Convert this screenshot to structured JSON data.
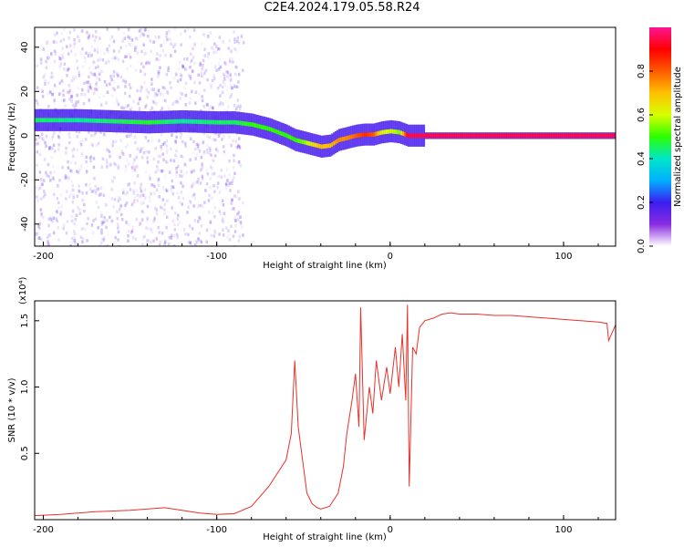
{
  "page": {
    "title": "C2E4.2024.179.05.58.R24"
  },
  "colors": {
    "snr_line": "#e8312a",
    "colormap": [
      "#ffffff",
      "#8a2be2",
      "#3b1ef0",
      "#00b0ff",
      "#00e6c8",
      "#2cff00",
      "#d7ff00",
      "#ffc000",
      "#ff5a00",
      "#ff0000",
      "#ff1493"
    ]
  },
  "chart_data": [
    {
      "type": "heatmap",
      "title": "C2E4.2024.179.05.58.R24",
      "xlabel": "Height of straight line (km)",
      "ylabel": "Frequency (Hz)",
      "xlim": [
        -205,
        130
      ],
      "ylim": [
        -50,
        49
      ],
      "x_ticks": [
        -200,
        -100,
        0,
        100
      ],
      "y_ticks": [
        -40,
        -20,
        0,
        20,
        40
      ],
      "grid": false,
      "colorbar": {
        "label": "Normalized spectral amplitude",
        "range": [
          0,
          1
        ],
        "ticks": [
          "0.0",
          "0.2",
          "0.4",
          "0.6",
          "0.8"
        ]
      },
      "ridge": {
        "x": [
          -205,
          -180,
          -160,
          -140,
          -120,
          -100,
          -90,
          -80,
          -70,
          -60,
          -55,
          -50,
          -45,
          -40,
          -35,
          -30,
          -25,
          -20,
          -15,
          -10,
          -5,
          0,
          5,
          10,
          20,
          130
        ],
        "freq": [
          7,
          7,
          6.5,
          6,
          6.5,
          6,
          6,
          5,
          3,
          0,
          -2,
          -3,
          -4,
          -5,
          -4.5,
          -2,
          -1,
          0,
          0.5,
          0.5,
          1.5,
          2,
          1.5,
          0,
          0,
          0
        ],
        "amplitude": [
          0.45,
          0.42,
          0.45,
          0.48,
          0.42,
          0.45,
          0.45,
          0.5,
          0.5,
          0.5,
          0.5,
          0.55,
          0.65,
          0.7,
          0.7,
          0.75,
          0.75,
          0.8,
          0.85,
          0.8,
          0.6,
          0.6,
          0.55,
          0.95,
          0.95,
          0.95
        ]
      }
    },
    {
      "type": "line",
      "xlabel": "Height of straight line (km)",
      "ylabel": "SNR (10 * v/v)",
      "y_multiplier": "(x10⁴)",
      "xlim": [
        -205,
        130
      ],
      "ylim": [
        0,
        16500
      ],
      "x_ticks": [
        -200,
        -100,
        0,
        100
      ],
      "y_ticks": [
        5000,
        10000,
        15000
      ],
      "y_tick_labels": [
        "0.5",
        "1.0",
        "1.5"
      ],
      "grid": false,
      "series": [
        {
          "x": [
            -205,
            -190,
            -170,
            -150,
            -130,
            -120,
            -110,
            -100,
            -90,
            -80,
            -70,
            -65,
            -60,
            -57,
            -55,
            -53,
            -50,
            -48,
            -45,
            -42,
            -40,
            -35,
            -30,
            -27,
            -25,
            -22,
            -20,
            -18,
            -17,
            -15,
            -12,
            -10,
            -8,
            -5,
            -2,
            0,
            3,
            5,
            7,
            9,
            10,
            11,
            13,
            15,
            17,
            20,
            25,
            30,
            35,
            40,
            50,
            60,
            70,
            80,
            90,
            100,
            110,
            120,
            125,
            126,
            130
          ],
          "values": [
            300,
            400,
            600,
            700,
            900,
            700,
            500,
            400,
            450,
            1000,
            2500,
            3500,
            4500,
            6500,
            12000,
            7000,
            4000,
            2000,
            1200,
            900,
            800,
            1000,
            2000,
            4000,
            6500,
            9000,
            11000,
            7000,
            16000,
            6000,
            10000,
            8000,
            12000,
            9000,
            11500,
            9500,
            13000,
            10000,
            14000,
            9000,
            16200,
            2500,
            13000,
            12500,
            14500,
            15000,
            15200,
            15500,
            15600,
            15500,
            15500,
            15400,
            15400,
            15300,
            15200,
            15100,
            15000,
            14900,
            14800,
            13500,
            14700
          ]
        }
      ]
    }
  ]
}
